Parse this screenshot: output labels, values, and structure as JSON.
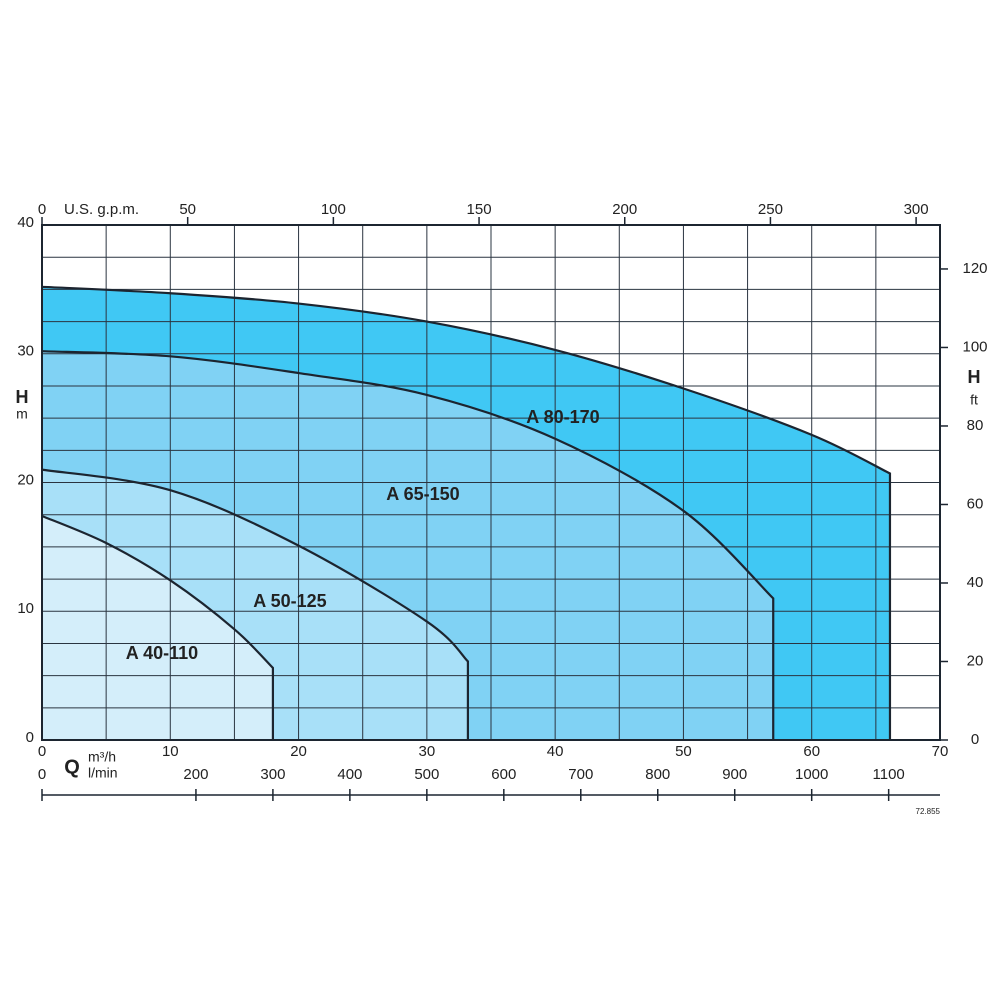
{
  "chart_data": {
    "type": "area",
    "xlabel": "m³/h",
    "xlim": [
      0,
      70
    ],
    "xticks": [
      0,
      10,
      20,
      30,
      40,
      50,
      60,
      70
    ],
    "x2label": "U.S. g.p.m.",
    "x2lim": [
      0,
      308.2
    ],
    "x2ticks": [
      0,
      50,
      100,
      150,
      200,
      250,
      300
    ],
    "x3label": "l/min",
    "x3lim": [
      0,
      1166.7
    ],
    "x3ticks": [
      0,
      200,
      300,
      400,
      500,
      600,
      700,
      800,
      900,
      1000,
      1100
    ],
    "qlabel": "Q",
    "ylabel": "H",
    "yunit": "m",
    "ylim": [
      0,
      40
    ],
    "yticks": [
      0,
      10,
      20,
      30,
      40
    ],
    "y2label": "H",
    "y2unit": "ft",
    "y2lim": [
      0,
      131.2
    ],
    "y2ticks": [
      0,
      20,
      40,
      60,
      80,
      100,
      120
    ],
    "grid": true,
    "code": "72.855",
    "series": [
      {
        "name": "A 80-170",
        "color": "#40c8f4",
        "x": [
          0,
          10,
          20,
          30,
          40,
          50,
          60,
          66.1
        ],
        "values": [
          35.2,
          34.7,
          33.9,
          32.5,
          30.3,
          27.3,
          23.7,
          20.7
        ]
      },
      {
        "name": "A 65-150",
        "color": "#80d2f4",
        "x": [
          0,
          10,
          20,
          30,
          40,
          50,
          57
        ],
        "values": [
          30.2,
          29.8,
          28.5,
          26.8,
          23.4,
          17.8,
          11.0
        ]
      },
      {
        "name": "A 50-125",
        "color": "#a8e0f8",
        "x": [
          0,
          10,
          20,
          30,
          33.2
        ],
        "values": [
          21.0,
          19.4,
          15.1,
          9.2,
          6.1
        ]
      },
      {
        "name": "A 40-110",
        "color": "#d4eefa",
        "x": [
          0,
          5,
          10,
          15,
          18
        ],
        "values": [
          17.4,
          15.3,
          12.4,
          8.6,
          5.6
        ]
      }
    ]
  }
}
